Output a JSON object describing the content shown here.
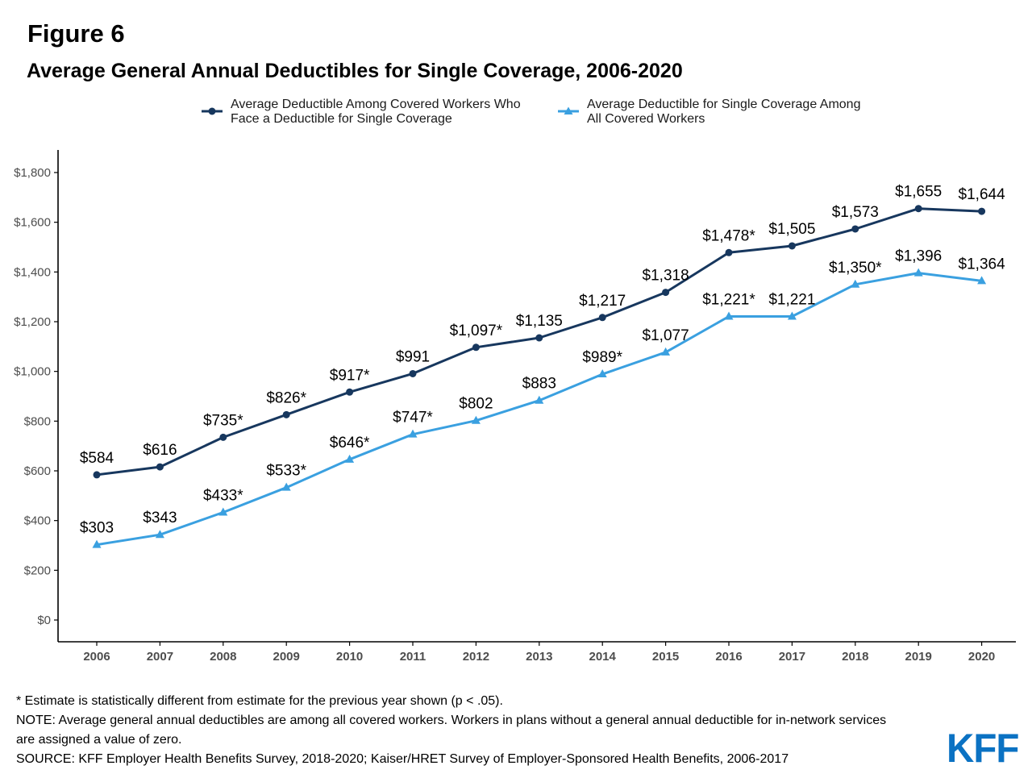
{
  "figure_label": "Figure 6",
  "title": "Average General Annual Deductibles for Single Coverage, 2006-2020",
  "legend": [
    {
      "line1": "Average Deductible Among Covered Workers Who",
      "line2": "Face a Deductible for Single Coverage"
    },
    {
      "line1": "Average Deductible for Single Coverage Among",
      "line2": "All Covered Workers"
    }
  ],
  "colors": {
    "series_dark": "#17375e",
    "series_light": "#3aa0e0",
    "axis": "#000000",
    "logo": "#0b72c3"
  },
  "footnotes": [
    "* Estimate is statistically different from estimate for the previous year shown (p < .05).",
    "NOTE: Average general annual deductibles are among all covered workers. Workers in plans without a general annual deductible for in-network services",
    "are assigned a value of zero.",
    "SOURCE: KFF Employer Health Benefits Survey, 2018-2020; Kaiser/HRET Survey of Employer-Sponsored Health Benefits, 2006-2017"
  ],
  "logo_text": "KFF",
  "chart_data": {
    "type": "line",
    "title": "Average General Annual Deductibles for Single Coverage, 2006-2020",
    "xlabel": "",
    "ylabel": "",
    "categories": [
      "2006",
      "2007",
      "2008",
      "2009",
      "2010",
      "2011",
      "2012",
      "2013",
      "2014",
      "2015",
      "2016",
      "2017",
      "2018",
      "2019",
      "2020"
    ],
    "ylim": [
      0,
      1800
    ],
    "y_ticks": [
      0,
      200,
      400,
      600,
      800,
      1000,
      1200,
      1400,
      1600,
      1800
    ],
    "y_tick_labels": [
      "$0",
      "$200",
      "$400",
      "$600",
      "$800",
      "$1,000",
      "$1,200",
      "$1,400",
      "$1,600",
      "$1,800"
    ],
    "grid": false,
    "legend_position": "top",
    "series": [
      {
        "name": "Average Deductible Among Covered Workers Who Face a Deductible for Single Coverage",
        "marker": "circle",
        "color": "#17375e",
        "values": [
          584,
          616,
          735,
          826,
          917,
          991,
          1097,
          1135,
          1217,
          1318,
          1478,
          1505,
          1573,
          1655,
          1644
        ],
        "labels": [
          "$584",
          "$616",
          "$735*",
          "$826*",
          "$917*",
          "$991",
          "$1,097*",
          "$1,135",
          "$1,217",
          "$1,318",
          "$1,478*",
          "$1,505",
          "$1,573",
          "$1,655",
          "$1,644"
        ]
      },
      {
        "name": "Average Deductible for Single Coverage Among All Covered Workers",
        "marker": "triangle",
        "color": "#3aa0e0",
        "values": [
          303,
          343,
          433,
          533,
          646,
          747,
          802,
          883,
          989,
          1077,
          1221,
          1221,
          1350,
          1396,
          1364
        ],
        "labels": [
          "$303",
          "$343",
          "$433*",
          "$533*",
          "$646*",
          "$747*",
          "$802",
          "$883",
          "$989*",
          "$1,077",
          "$1,221*",
          "$1,221",
          "$1,350*",
          "$1,396",
          "$1,364"
        ]
      }
    ]
  }
}
